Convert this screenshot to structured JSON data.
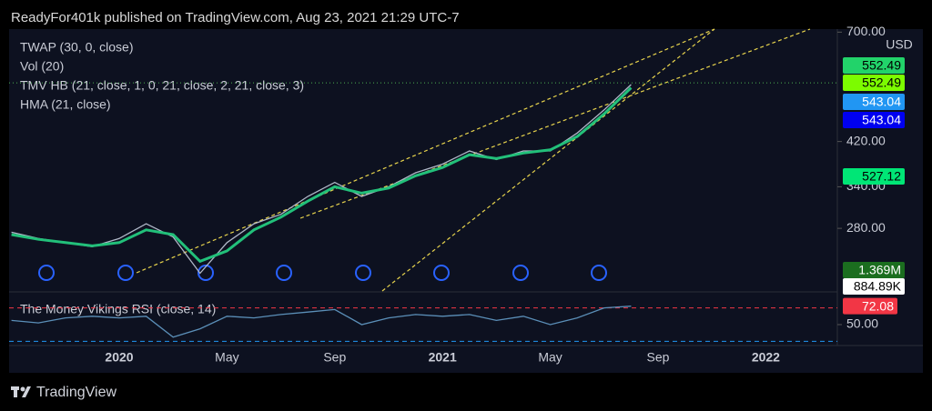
{
  "header": "ReadyFor401k published on TradingView.com, Aug 23, 2021 21:29 UTC-7",
  "indicators": [
    "TWAP (30, 0, close)",
    "Vol (20)",
    "TMV HB (21, close, 1, 0, 21, close, 2, 21, close, 3)",
    "HMA (21, close)"
  ],
  "footer": "TradingView",
  "chart_data": [
    {
      "type": "line",
      "currency": "USD",
      "log_scale": true,
      "grid": false,
      "x": [
        "2019-09",
        "2019-10",
        "2019-11",
        "2019-12",
        "2020-01",
        "2020-02",
        "2020-03",
        "2020-04",
        "2020-05",
        "2020-06",
        "2020-07",
        "2020-08",
        "2020-09",
        "2020-10",
        "2020-11",
        "2020-12",
        "2021-01",
        "2021-02",
        "2021-03",
        "2021-04",
        "2021-05",
        "2021-06",
        "2021-07",
        "2021-08"
      ],
      "xticks": [
        {
          "value": "2020-01",
          "label": "2020"
        },
        {
          "value": "2020-05",
          "label": "May"
        },
        {
          "value": "2020-09",
          "label": "Sep"
        },
        {
          "value": "2021-01",
          "label": "2021"
        },
        {
          "value": "2021-05",
          "label": "May"
        },
        {
          "value": "2021-09",
          "label": "Sep"
        },
        {
          "value": "2022-01",
          "label": "2022"
        }
      ],
      "ylim": [
        209,
        710
      ],
      "yticks": [
        {
          "value": 700,
          "label": "700.00"
        },
        {
          "value": 420,
          "label": "420.00"
        },
        {
          "value": 340,
          "label": "340.00"
        },
        {
          "value": 280,
          "label": "280.00"
        }
      ],
      "series": [
        {
          "color": "#b0b8c8",
          "values": [
            275,
            267,
            262,
            257,
            267,
            286,
            269,
            227,
            262,
            286,
            299,
            325,
            347,
            325,
            340,
            363,
            378,
            402,
            386,
            402,
            402,
            437,
            487,
            548
          ]
        },
        {
          "name": "HMA (21, close)",
          "color": "#22c07a",
          "values": [
            272,
            266,
            262,
            258,
            262,
            278,
            272,
            240,
            252,
            278,
            295,
            318,
            340,
            330,
            338,
            358,
            372,
            395,
            388,
            398,
            404,
            430,
            478,
            540
          ]
        }
      ],
      "price_tags": [
        {
          "value": 552.49,
          "color": "#22d36a",
          "text_color": "#000000"
        },
        {
          "value": 552.49,
          "color": "#7cfc00",
          "text_color": "#000000"
        },
        {
          "value": 543.04,
          "color": "#2196f3",
          "text_color": "#ffffff"
        },
        {
          "value": 543.04,
          "color": "#0000f0",
          "text_color": "#ffffff"
        },
        {
          "value": 527.12,
          "color": "#00e676",
          "text_color": "#000000"
        },
        {
          "value": 1369000,
          "label": "1.369M",
          "color": "#1b6e1f",
          "text_color": "#ffffff"
        },
        {
          "value": 884890,
          "label": "884.89K",
          "color": "#ffffff",
          "text_color": "#000000"
        }
      ]
    },
    {
      "type": "line",
      "title": "The Money Vikings RSI (close, 14)",
      "ylim": [
        25,
        88
      ],
      "yticks": [
        {
          "value": 50,
          "label": "50.00"
        }
      ],
      "hlines": [
        70,
        30
      ],
      "x": [
        "2019-09",
        "2019-10",
        "2019-11",
        "2019-12",
        "2020-01",
        "2020-02",
        "2020-03",
        "2020-04",
        "2020-05",
        "2020-06",
        "2020-07",
        "2020-08",
        "2020-09",
        "2020-10",
        "2020-11",
        "2020-12",
        "2021-01",
        "2021-02",
        "2021-03",
        "2021-04",
        "2021-05",
        "2021-06",
        "2021-07",
        "2021-08"
      ],
      "series": [
        {
          "color": "#5b8fb8",
          "values": [
            55,
            52,
            58,
            60,
            58,
            60,
            35,
            45,
            60,
            58,
            62,
            65,
            68,
            50,
            58,
            62,
            60,
            62,
            55,
            60,
            50,
            58,
            70,
            72
          ]
        }
      ],
      "last_value": 72.08,
      "last_color": "#f23645"
    }
  ]
}
